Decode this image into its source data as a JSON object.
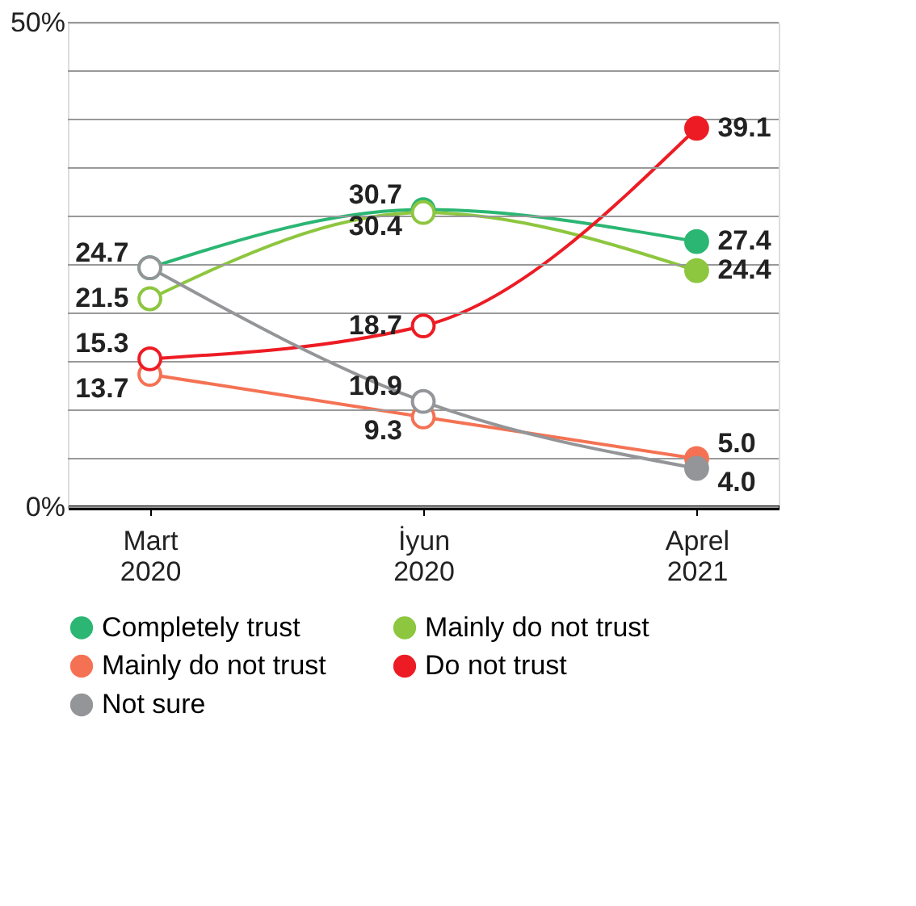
{
  "chart_data": {
    "type": "line",
    "categories": [
      "Mart 2020",
      "İyun 2020",
      "Aprel 2021"
    ],
    "series": [
      {
        "name": "Completely trust",
        "color": "#2bb673",
        "values": [
          24.7,
          30.7,
          27.4
        ],
        "value_labels": [
          "24.7",
          "30.7",
          "27.4"
        ]
      },
      {
        "name": "Mainly do not trust",
        "color": "#8dc63f",
        "values": [
          21.5,
          30.4,
          24.4
        ],
        "value_labels": [
          "21.5",
          "30.4",
          "24.4"
        ]
      },
      {
        "name": "Mainly do not trust",
        "color": "#f47253",
        "values": [
          13.7,
          9.3,
          5.0
        ],
        "value_labels": [
          "13.7",
          "9.3",
          "5.0"
        ]
      },
      {
        "name": "Do not trust",
        "color": "#ed1c24",
        "values": [
          15.3,
          18.7,
          39.1
        ],
        "value_labels": [
          "15.3",
          "18.7",
          "39.1"
        ]
      },
      {
        "name": "Not sure",
        "color": "#939598",
        "values": [
          24.7,
          10.9,
          4.0
        ],
        "value_labels": [
          null,
          "10.9",
          "4.0"
        ]
      }
    ],
    "ylim": [
      0,
      50
    ],
    "yticks": [
      {
        "value": 0,
        "label": "0%"
      },
      {
        "value": 5,
        "label": null
      },
      {
        "value": 10,
        "label": null
      },
      {
        "value": 15,
        "label": null
      },
      {
        "value": 20,
        "label": null
      },
      {
        "value": 25,
        "label": null
      },
      {
        "value": 30,
        "label": null
      },
      {
        "value": 35,
        "label": null
      },
      {
        "value": 40,
        "label": null
      },
      {
        "value": 45,
        "label": null
      },
      {
        "value": 50,
        "label": "50%"
      }
    ],
    "grid": "y",
    "legend": "bottom",
    "marker": "circle",
    "line_style": "solid"
  }
}
